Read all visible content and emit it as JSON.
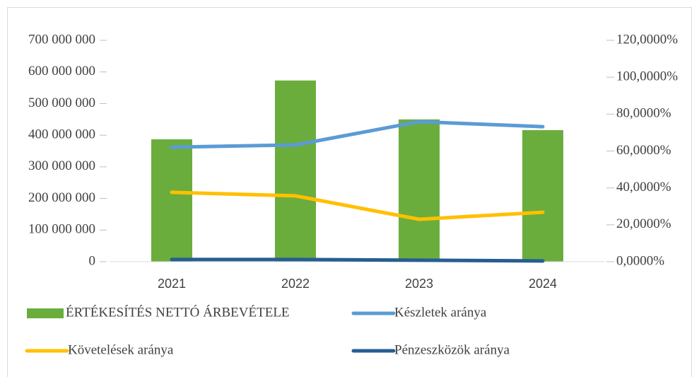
{
  "chart_data": {
    "type": "combo",
    "categories": [
      "2021",
      "2022",
      "2023",
      "2024"
    ],
    "series": [
      {
        "name": "ÉRTÉKESÍTÉS NETTÓ ÁRBEVÉTELE",
        "type": "bar",
        "color": "#6aad3d",
        "values": [
          387000000,
          573000000,
          450000000,
          416000000
        ]
      },
      {
        "name": "Készletek aránya",
        "type": "line",
        "axis": "y2",
        "color": "#5b9bd5",
        "values": [
          62.1,
          63.3,
          75.9,
          73.2
        ]
      },
      {
        "name": "Követelések aránya",
        "type": "line",
        "axis": "y2",
        "color": "#ffc000",
        "values": [
          37.6,
          35.7,
          23.0,
          26.8
        ]
      },
      {
        "name": "Pénzeszközök aránya",
        "type": "line",
        "axis": "y2",
        "color": "#255e91",
        "values": [
          1.2,
          1.2,
          0.8,
          0.4
        ]
      }
    ],
    "ylim": [
      0,
      700000000
    ],
    "yticks": [
      {
        "value": 0,
        "label": "0"
      },
      {
        "value": 100000000,
        "label": "100 000 000"
      },
      {
        "value": 200000000,
        "label": "200 000 000"
      },
      {
        "value": 300000000,
        "label": "300 000 000"
      },
      {
        "value": 400000000,
        "label": "400 000 000"
      },
      {
        "value": 500000000,
        "label": "500 000 000"
      },
      {
        "value": 600000000,
        "label": "600 000 000"
      },
      {
        "value": 700000000,
        "label": "700 000 000"
      }
    ],
    "y2lim": [
      0,
      120
    ],
    "y2ticks": [
      {
        "value": 0,
        "label": "0,0000%"
      },
      {
        "value": 20,
        "label": "20,0000%"
      },
      {
        "value": 40,
        "label": "40,0000%"
      },
      {
        "value": 60,
        "label": "60,0000%"
      },
      {
        "value": 80,
        "label": "80,0000%"
      },
      {
        "value": 100,
        "label": "100,0000%"
      },
      {
        "value": 120,
        "label": "120,0000%"
      }
    ],
    "grid": false,
    "legend": "bottom"
  }
}
